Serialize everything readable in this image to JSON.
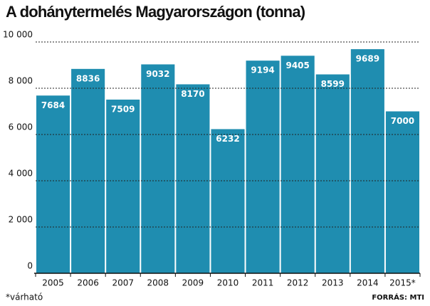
{
  "chart_data": {
    "type": "bar",
    "title": "A dohánytermelés Magyarországon (tonna)",
    "categories": [
      "2005",
      "2006",
      "2007",
      "2008",
      "2009",
      "2010",
      "2011",
      "2012",
      "2013",
      "2014",
      "2015*"
    ],
    "values": [
      7684,
      8836,
      7509,
      9032,
      8170,
      6232,
      9194,
      9405,
      8599,
      9689,
      7000
    ],
    "color": "#1f8db0",
    "ylim": [
      0,
      10000
    ],
    "yticks": [
      0,
      {
        "value": 2000,
        "label": "2 000"
      },
      {
        "value": 4000,
        "label": "4 000"
      },
      {
        "value": 6000,
        "label": "6 000"
      },
      {
        "value": 8000,
        "label": "8 000"
      },
      {
        "value": 10000,
        "label": "10 000"
      }
    ],
    "grid": true,
    "note": "*várható",
    "source": "FORRÁS: MTI"
  }
}
